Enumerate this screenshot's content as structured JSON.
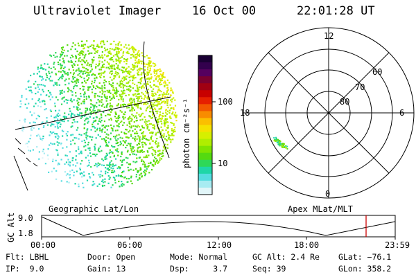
{
  "header": {
    "instrument": "Ultraviolet Imager",
    "date": "16 Oct 00",
    "time": "22:01:28 UT"
  },
  "colorbar": {
    "unit_label": "photon cm⁻²s⁻¹",
    "ticks": [
      "100",
      "10"
    ],
    "colors": [
      "#1a0033",
      "#33004d",
      "#55005f",
      "#7a0030",
      "#a00012",
      "#c80000",
      "#e62000",
      "#f25800",
      "#f88c00",
      "#fbbf00",
      "#f5e100",
      "#d6ef00",
      "#b0ee00",
      "#80e400",
      "#54da10",
      "#2ed858",
      "#1fd6a8",
      "#55dde0",
      "#a8ecf2",
      "#e2f6f9"
    ]
  },
  "polar": {
    "mlt_labels": [
      "12",
      "18",
      "6",
      "0"
    ],
    "lat_labels": [
      "60",
      "70",
      "80"
    ]
  },
  "timeline": {
    "left_label": "Geographic Lat/Lon",
    "right_label": "Apex MLat/MLT",
    "ylabel": "GC Alt",
    "ytick_top": "9.0",
    "ytick_bottom": "1.8",
    "xticks": [
      "00:00",
      "06:00",
      "12:00",
      "18:00",
      "23:59"
    ],
    "marker_color": "#cc0000"
  },
  "info": {
    "flt": "Flt: LBHL",
    "ip": "IP:  9.0",
    "door": "Door: Open",
    "gain": "Gain: 13",
    "mode": "Mode: Normal",
    "dsp": "Dsp:     3.7",
    "gcalt": "GC Alt: 2.4 Re",
    "seq": "Seq: 39",
    "glat": "GLat: −76.1",
    "glon": "GLon: 358.2"
  }
}
